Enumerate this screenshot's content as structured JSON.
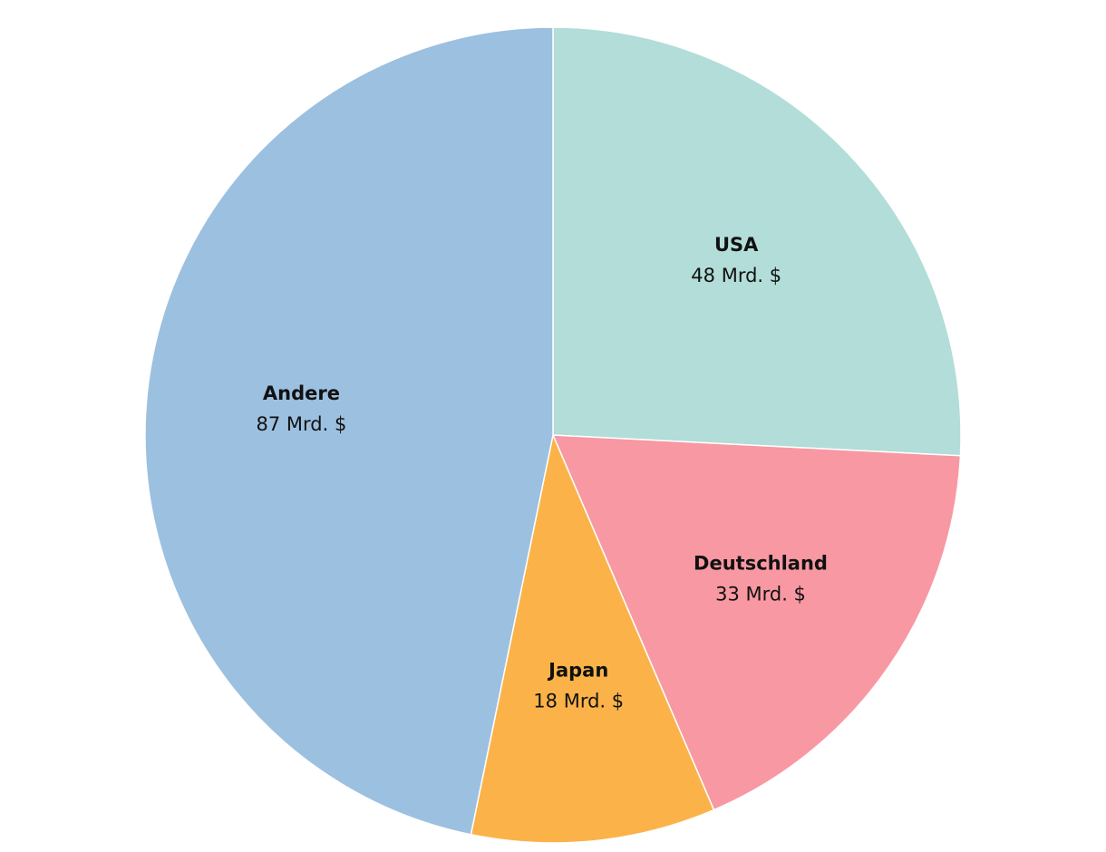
{
  "chart_data": {
    "type": "pie",
    "categories": [
      "USA",
      "Deutschland",
      "Japan",
      "Andere"
    ],
    "values": [
      48,
      33,
      18,
      87
    ],
    "value_labels": [
      "48 Mrd. $",
      "33 Mrd. $",
      "18 Mrd. $",
      "87 Mrd. $"
    ],
    "colors": [
      "#b2ddd8",
      "#f898a3",
      "#fbb349",
      "#9cc0e0"
    ]
  }
}
